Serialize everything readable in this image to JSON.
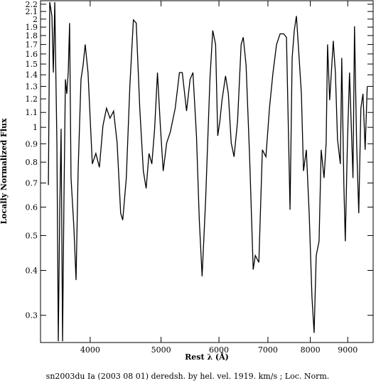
{
  "chart_data": {
    "type": "line",
    "title": "sn2003du Ia (2003 08 01) deredsh. by hel. vel.  1919. km/s ;  Loc. Norm.",
    "x_label": "Rest λ (Å)",
    "y_label": "Locally Normalized Flux",
    "x_log": true,
    "y_log": true,
    "xlim": [
      3421,
      9750
    ],
    "ylim": [
      0.252,
      2.25
    ],
    "xticks": [
      4000,
      5000,
      6000,
      7000,
      8000,
      9000
    ],
    "yticks": [
      0.3,
      0.4,
      0.5,
      0.6,
      0.7,
      0.8,
      0.9,
      1,
      1.1,
      1.2,
      1.3,
      1.4,
      1.5,
      1.6,
      1.7,
      1.8,
      1.9,
      2,
      2.1,
      2.2
    ],
    "x": [
      3507,
      3522,
      3546,
      3562,
      3578,
      3602,
      3618,
      3634,
      3650,
      3667,
      3683,
      3700,
      3716,
      3733,
      3749,
      3766,
      3800,
      3826,
      3851,
      3886,
      3912,
      3938,
      3973,
      4027,
      4072,
      4118,
      4164,
      4211,
      4258,
      4306,
      4354,
      4403,
      4432,
      4482,
      4532,
      4583,
      4624,
      4676,
      4729,
      4771,
      4814,
      4857,
      4900,
      4944,
      4989,
      5034,
      5090,
      5147,
      5228,
      5298,
      5346,
      5418,
      5479,
      5528,
      5590,
      5640,
      5690,
      5754,
      5832,
      5884,
      5937,
      5977,
      6017,
      6058,
      6126,
      6180,
      6236,
      6292,
      6362,
      6434,
      6477,
      6535,
      6608,
      6683,
      6728,
      6803,
      6879,
      6956,
      7034,
      7113,
      7193,
      7274,
      7356,
      7421,
      7505,
      7555,
      7606,
      7657,
      7691,
      7778,
      7830,
      7900,
      7971,
      8042,
      8096,
      8150,
      8223,
      8278,
      8353,
      8409,
      8446,
      8503,
      8599,
      8657,
      8715,
      8793,
      8832,
      8891,
      8931,
      8991,
      9051,
      9150,
      9194,
      9255,
      9318,
      9380,
      9443,
      9507,
      9570
    ],
    "series": [
      {
        "color": "#000000",
        "values": [
          0.691,
          2.23,
          2.04,
          1.42,
          2.23,
          0.906,
          0.254,
          0.577,
          0.991,
          0.254,
          0.631,
          1.36,
          1.24,
          1.42,
          1.95,
          0.723,
          0.527,
          0.376,
          0.756,
          1.36,
          1.49,
          1.7,
          1.42,
          0.791,
          0.846,
          0.774,
          1.01,
          1.13,
          1.06,
          1.11,
          0.906,
          0.577,
          0.552,
          0.723,
          1.3,
          1.99,
          1.95,
          1.13,
          0.756,
          0.676,
          0.846,
          0.791,
          0.991,
          1.42,
          1.01,
          0.756,
          0.906,
          0.969,
          1.13,
          1.42,
          1.42,
          1.11,
          1.36,
          1.42,
          0.947,
          0.552,
          0.385,
          0.631,
          1.36,
          1.86,
          1.7,
          0.947,
          1.04,
          1.19,
          1.39,
          1.24,
          0.906,
          0.828,
          1.04,
          1.7,
          1.78,
          1.49,
          0.828,
          0.402,
          0.44,
          0.421,
          0.866,
          0.828,
          1.13,
          1.42,
          1.7,
          1.82,
          1.82,
          1.78,
          0.59,
          1.56,
          1.86,
          2.04,
          1.78,
          1.24,
          0.756,
          0.866,
          0.577,
          0.336,
          0.268,
          0.44,
          0.482,
          0.866,
          0.723,
          0.906,
          1.7,
          1.19,
          1.74,
          1.42,
          0.926,
          0.791,
          1.56,
          0.691,
          0.482,
          0.906,
          1.42,
          0.723,
          1.91,
          0.906,
          0.577,
          1.13,
          1.24,
          0.866,
          1.3
        ]
      }
    ]
  }
}
